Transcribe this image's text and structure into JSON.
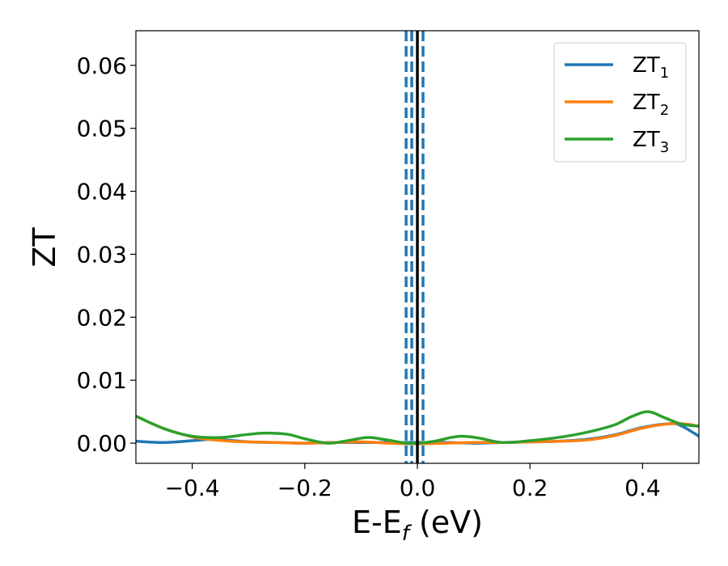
{
  "chart_data": {
    "type": "line",
    "xlabel_main": "E-E",
    "xlabel_sub": "f",
    "xlabel_unit": " (eV)",
    "ylabel": "ZT",
    "xlim": [
      -0.5,
      0.5
    ],
    "ylim": [
      -0.0032,
      0.0655
    ],
    "x_ticks": [
      -0.4,
      -0.2,
      0.0,
      0.2,
      0.4
    ],
    "x_tick_labels": [
      "−0.4",
      "−0.2",
      "0.0",
      "0.2",
      "0.4"
    ],
    "y_ticks": [
      0.0,
      0.01,
      0.02,
      0.03,
      0.04,
      0.05,
      0.06
    ],
    "y_tick_labels": [
      "0.00",
      "0.01",
      "0.02",
      "0.03",
      "0.04",
      "0.05",
      "0.06"
    ],
    "legend_position": "top-right",
    "grid": false,
    "vertical_lines": [
      {
        "x": 0.0,
        "style": "solid",
        "color": "#000000"
      },
      {
        "x": -0.02,
        "style": "dashed",
        "color": "#1f77b4"
      },
      {
        "x": -0.01,
        "style": "dashed",
        "color": "#1f77b4"
      },
      {
        "x": 0.01,
        "style": "dashed",
        "color": "#1f77b4"
      }
    ],
    "series": [
      {
        "name": "ZT",
        "subscript": "1",
        "color": "#1f77b4",
        "x": [
          -0.5,
          -0.45,
          -0.4,
          -0.36,
          -0.3,
          -0.25,
          -0.2,
          -0.15,
          -0.1,
          -0.05,
          0.0,
          0.05,
          0.1,
          0.15,
          0.2,
          0.25,
          0.3,
          0.35,
          0.4,
          0.45,
          0.47,
          0.5
        ],
        "y": [
          0.0003,
          0.0001,
          0.0004,
          0.0006,
          0.0002,
          0.0001,
          0.0,
          0.0001,
          0.0001,
          0.0001,
          0.0001,
          0.0001,
          0.0,
          0.0001,
          0.0002,
          0.0003,
          0.0006,
          0.0013,
          0.0025,
          0.0031,
          0.0027,
          0.0011
        ]
      },
      {
        "name": "ZT",
        "subscript": "2",
        "color": "#ff7f0e",
        "x": [
          -0.5,
          -0.45,
          -0.4,
          -0.37,
          -0.33,
          -0.3,
          -0.25,
          -0.2,
          -0.15,
          -0.1,
          -0.05,
          0.0,
          0.05,
          0.1,
          0.15,
          0.2,
          0.25,
          0.3,
          0.35,
          0.4,
          0.45,
          0.48,
          0.5
        ],
        "y": [
          0.0043,
          0.0023,
          0.001,
          0.0006,
          0.0003,
          0.0002,
          0.0001,
          0.0,
          0.0001,
          0.0002,
          0.0,
          -0.0001,
          0.0,
          0.0001,
          0.0001,
          0.0002,
          0.0003,
          0.0005,
          0.0012,
          0.0024,
          0.0031,
          0.003,
          0.0027
        ]
      },
      {
        "name": "ZT",
        "subscript": "3",
        "color": "#2ca02c",
        "x": [
          -0.5,
          -0.45,
          -0.4,
          -0.35,
          -0.3,
          -0.27,
          -0.23,
          -0.2,
          -0.16,
          -0.13,
          -0.09,
          -0.06,
          -0.02,
          0.0,
          0.03,
          0.06,
          0.08,
          0.11,
          0.15,
          0.2,
          0.25,
          0.3,
          0.35,
          0.38,
          0.41,
          0.44,
          0.47,
          0.5
        ],
        "y": [
          0.0043,
          0.0023,
          0.0011,
          0.0009,
          0.0014,
          0.0016,
          0.0014,
          0.0007,
          0.0,
          0.0003,
          0.0009,
          0.0006,
          0.0,
          0.0,
          0.0003,
          0.0009,
          0.0011,
          0.0008,
          0.0001,
          0.0004,
          0.0009,
          0.0017,
          0.0029,
          0.0042,
          0.005,
          0.004,
          0.003,
          0.0027
        ]
      }
    ]
  }
}
